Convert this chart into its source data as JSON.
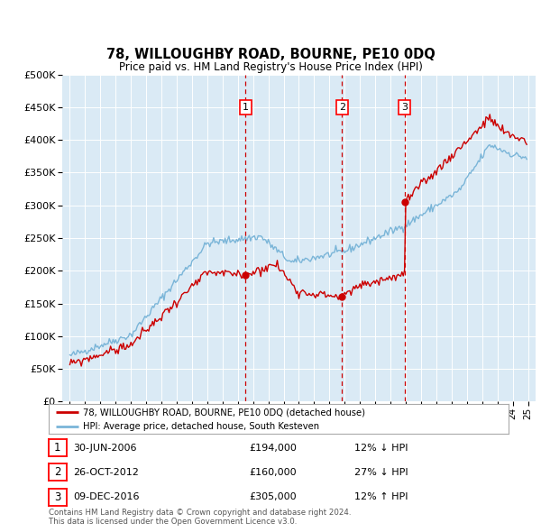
{
  "title": "78, WILLOUGHBY ROAD, BOURNE, PE10 0DQ",
  "subtitle": "Price paid vs. HM Land Registry's House Price Index (HPI)",
  "legend_line1": "78, WILLOUGHBY ROAD, BOURNE, PE10 0DQ (detached house)",
  "legend_line2": "HPI: Average price, detached house, South Kesteven",
  "footnote": "Contains HM Land Registry data © Crown copyright and database right 2024.\nThis data is licensed under the Open Government Licence v3.0.",
  "transactions": [
    {
      "num": 1,
      "date": "30-JUN-2006",
      "price": 194000,
      "year": 2006.5,
      "change": "12% ↓ HPI"
    },
    {
      "num": 2,
      "date": "26-OCT-2012",
      "price": 160000,
      "year": 2012.83,
      "change": "27% ↓ HPI"
    },
    {
      "num": 3,
      "date": "09-DEC-2016",
      "price": 305000,
      "year": 2016.92,
      "change": "12% ↑ HPI"
    }
  ],
  "hpi_color": "#7ab5d8",
  "price_color": "#cc0000",
  "vline_color": "#cc0000",
  "background_color": "#daeaf5",
  "ylim": [
    0,
    500000
  ],
  "yticks": [
    0,
    50000,
    100000,
    150000,
    200000,
    250000,
    300000,
    350000,
    400000,
    450000,
    500000
  ],
  "xlim_start": 1994.5,
  "xlim_end": 2025.5
}
